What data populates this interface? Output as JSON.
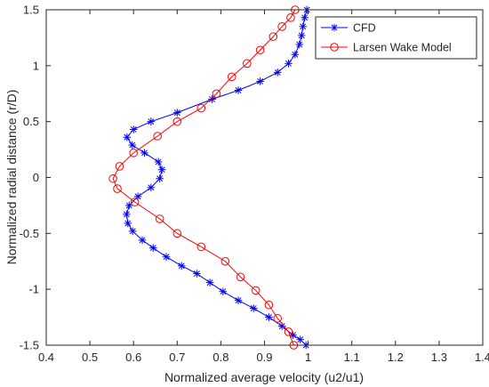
{
  "chart_data": {
    "type": "line",
    "xlabel": "Normalized average velocity (u2/u1)",
    "ylabel": "Normalized radial distance (r/D)",
    "xlim": [
      0.4,
      1.4
    ],
    "ylim": [
      -1.5,
      1.5
    ],
    "xticks": [
      0.4,
      0.5,
      0.6,
      0.7,
      0.8,
      0.9,
      1.0,
      1.1,
      1.2,
      1.3,
      1.4
    ],
    "xtick_labels": [
      "0.4",
      "0.5",
      "0.6",
      "0.7",
      "0.8",
      "0.9",
      "1",
      "1.1",
      "1.2",
      "1.3",
      "1.4"
    ],
    "yticks": [
      -1.5,
      -1.0,
      -0.5,
      0,
      0.5,
      1.0,
      1.5
    ],
    "ytick_labels": [
      "-1.5",
      "-1",
      "-0.5",
      "0",
      "0.5",
      "1",
      "1.5"
    ],
    "grid": false,
    "legend_position": "top-right",
    "series": [
      {
        "name": "CFD",
        "color": "#0000ff",
        "marker": "asterisk",
        "x": [
          0.997,
          0.992,
          0.988,
          0.985,
          0.98,
          0.97,
          0.955,
          0.93,
          0.89,
          0.84,
          0.78,
          0.7,
          0.64,
          0.6,
          0.585,
          0.597,
          0.625,
          0.657,
          0.665,
          0.66,
          0.64,
          0.61,
          0.59,
          0.584,
          0.587,
          0.598,
          0.62,
          0.645,
          0.675,
          0.71,
          0.745,
          0.775,
          0.805,
          0.84,
          0.875,
          0.91,
          0.94,
          0.965,
          0.982,
          0.995
        ],
        "y": [
          1.5,
          1.43,
          1.35,
          1.27,
          1.19,
          1.1,
          1.02,
          0.94,
          0.86,
          0.78,
          0.7,
          0.58,
          0.5,
          0.43,
          0.36,
          0.29,
          0.22,
          0.14,
          0.07,
          -0.01,
          -0.09,
          -0.17,
          -0.25,
          -0.33,
          -0.41,
          -0.48,
          -0.56,
          -0.63,
          -0.71,
          -0.79,
          -0.86,
          -0.94,
          -1.02,
          -1.1,
          -1.17,
          -1.25,
          -1.33,
          -1.41,
          -1.45,
          -1.5
        ]
      },
      {
        "name": "Larsen Wake Model",
        "color": "#ff0000",
        "marker": "circle",
        "x": [
          0.97,
          0.96,
          0.94,
          0.92,
          0.89,
          0.86,
          0.825,
          0.79,
          0.755,
          0.7,
          0.655,
          0.6,
          0.568,
          0.553,
          0.563,
          0.603,
          0.66,
          0.7,
          0.755,
          0.81,
          0.845,
          0.88,
          0.91,
          0.93,
          0.955,
          0.967
        ],
        "y": [
          1.5,
          1.43,
          1.35,
          1.26,
          1.14,
          1.02,
          0.9,
          0.75,
          0.62,
          0.5,
          0.37,
          0.22,
          0.1,
          -0.01,
          -0.1,
          -0.22,
          -0.37,
          -0.5,
          -0.62,
          -0.75,
          -0.89,
          -1.01,
          -1.14,
          -1.26,
          -1.38,
          -1.5
        ]
      }
    ]
  }
}
